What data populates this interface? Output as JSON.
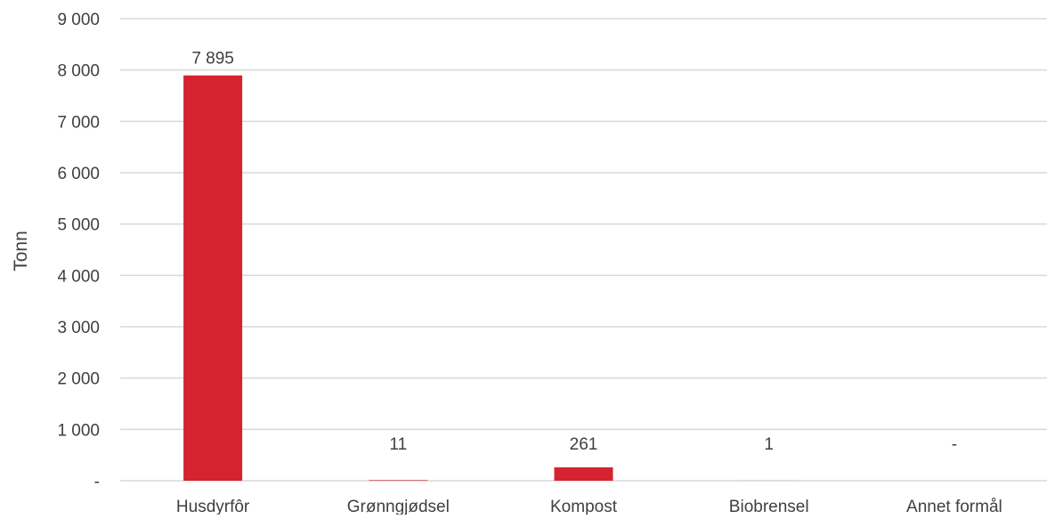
{
  "chart_data": {
    "type": "bar",
    "title": "",
    "xlabel": "",
    "ylabel": "Tonn",
    "categories": [
      "Husdyrfôr",
      "Grønngjødsel",
      "Kompost",
      "Biobrensel",
      "Annet formål"
    ],
    "values": [
      7895,
      11,
      261,
      1,
      0
    ],
    "data_labels": [
      "7 895",
      "11",
      "261",
      "1",
      "-"
    ],
    "ylim": [
      0,
      9000
    ],
    "yticks": [
      0,
      1000,
      2000,
      3000,
      4000,
      5000,
      6000,
      7000,
      8000,
      9000
    ],
    "ytick_labels": [
      "-",
      "1 000",
      "2 000",
      "3 000",
      "4 000",
      "5 000",
      "6 000",
      "7 000",
      "8 000",
      "9 000"
    ],
    "grid": true,
    "legend": "none",
    "colors": {
      "bar": "#d52330",
      "grid": "#d9d9d9",
      "text": "#404040"
    }
  }
}
